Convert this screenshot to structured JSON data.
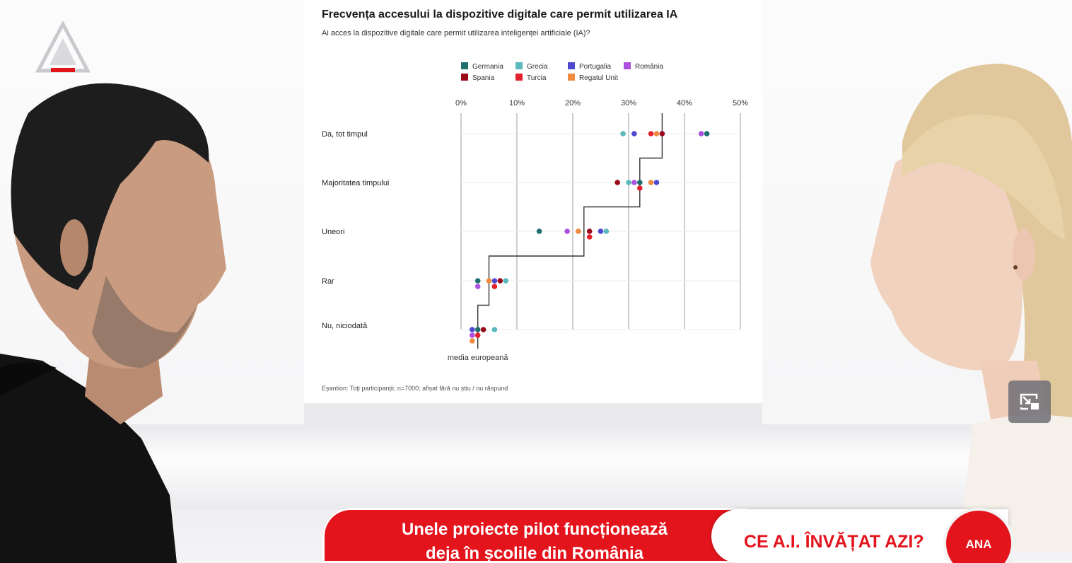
{
  "chart_data": {
    "type": "scatter",
    "title": "Frecvența accesului la dispozitive digitale care permit utilizarea IA",
    "subtitle": "Ai acces la dispozitive digitale care permit utilizarea inteligenței artificiale (IA)?",
    "footnote": "Eșantion: Toți participanții; n=7000; afișat fără nu știu / nu răspund",
    "x_ticks": [
      "0%",
      "10%",
      "20%",
      "30%",
      "40%",
      "50%"
    ],
    "xlim": [
      0,
      50
    ],
    "grid": true,
    "legend_position": "top",
    "categories": [
      "Da, tot timpul",
      "Majoritatea timpului",
      "Uneori",
      "Rar",
      "Nu, niciodată"
    ],
    "series": [
      {
        "name": "Germania",
        "color": "#1f6f6f",
        "values": [
          44,
          32,
          14,
          3,
          3
        ]
      },
      {
        "name": "Grecia",
        "color": "#5bb8bc",
        "values": [
          29,
          30,
          26,
          8,
          6
        ]
      },
      {
        "name": "Portugalia",
        "color": "#4f49d0",
        "values": [
          31,
          35,
          25,
          6,
          2
        ]
      },
      {
        "name": "România",
        "color": "#ad52e0",
        "values": [
          43,
          31,
          19,
          3,
          2
        ]
      },
      {
        "name": "Spania",
        "color": "#9b0a1a",
        "values": [
          36,
          28,
          23,
          7,
          4
        ]
      },
      {
        "name": "Turcia",
        "color": "#e3212e",
        "values": [
          34,
          32,
          23,
          6,
          3
        ]
      },
      {
        "name": "Regatul Unit",
        "color": "#ef8a3e",
        "values": [
          35,
          34,
          21,
          5,
          2
        ]
      }
    ],
    "step_line": {
      "name": "media europeană",
      "values": [
        36,
        32,
        22,
        5,
        3
      ]
    }
  },
  "ticker": {
    "headline_line1": "Unele proiecte pilot funcționează",
    "headline_line2": "deja în școlile din România",
    "show_name": "CE A.I. ÎNVĂȚAT AZI?",
    "badge": "ANA"
  },
  "colors": {
    "brand_red": "#e4141d"
  },
  "icons": {
    "pip": "picture-in-picture-icon",
    "logo": "channel-logo-icon"
  }
}
